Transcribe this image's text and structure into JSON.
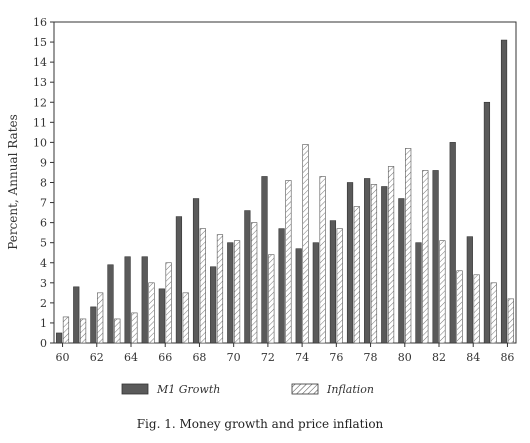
{
  "chart_data": {
    "type": "bar",
    "title": "",
    "xlabel": "",
    "ylabel": "Percent, Annual Rates",
    "ylim": [
      0,
      16
    ],
    "yticks": [
      0,
      1,
      2,
      3,
      4,
      5,
      6,
      7,
      8,
      9,
      10,
      11,
      12,
      13,
      14,
      15,
      16
    ],
    "x": [
      60,
      61,
      62,
      63,
      64,
      65,
      66,
      67,
      68,
      69,
      70,
      71,
      72,
      73,
      74,
      75,
      76,
      77,
      78,
      79,
      80,
      81,
      82,
      83,
      84,
      85,
      86
    ],
    "xtick_labels": [
      "60",
      "62",
      "64",
      "66",
      "68",
      "70",
      "72",
      "74",
      "76",
      "78",
      "80",
      "82",
      "84",
      "86"
    ],
    "series": [
      {
        "name": "M1 Growth",
        "color": "#5a5a5a",
        "values": [
          0.5,
          2.8,
          1.8,
          3.9,
          4.3,
          4.3,
          2.7,
          6.3,
          7.2,
          3.8,
          5.0,
          6.6,
          8.3,
          5.7,
          4.7,
          5.0,
          6.1,
          8.0,
          8.2,
          7.8,
          7.2,
          5.0,
          8.6,
          10.0,
          5.3,
          12.0,
          15.1
        ]
      },
      {
        "name": "Inflation",
        "color": "#888888",
        "values": [
          1.3,
          1.2,
          2.5,
          1.2,
          1.5,
          3.0,
          4.0,
          2.5,
          5.7,
          5.4,
          5.1,
          6.0,
          4.4,
          8.1,
          9.9,
          8.3,
          5.7,
          6.8,
          7.9,
          8.8,
          9.7,
          8.6,
          5.1,
          3.6,
          3.4,
          3.0,
          2.2
        ]
      }
    ],
    "grid": false,
    "legend_position": "bottom"
  },
  "caption": "Fig. 1.  Money growth and price inflation"
}
